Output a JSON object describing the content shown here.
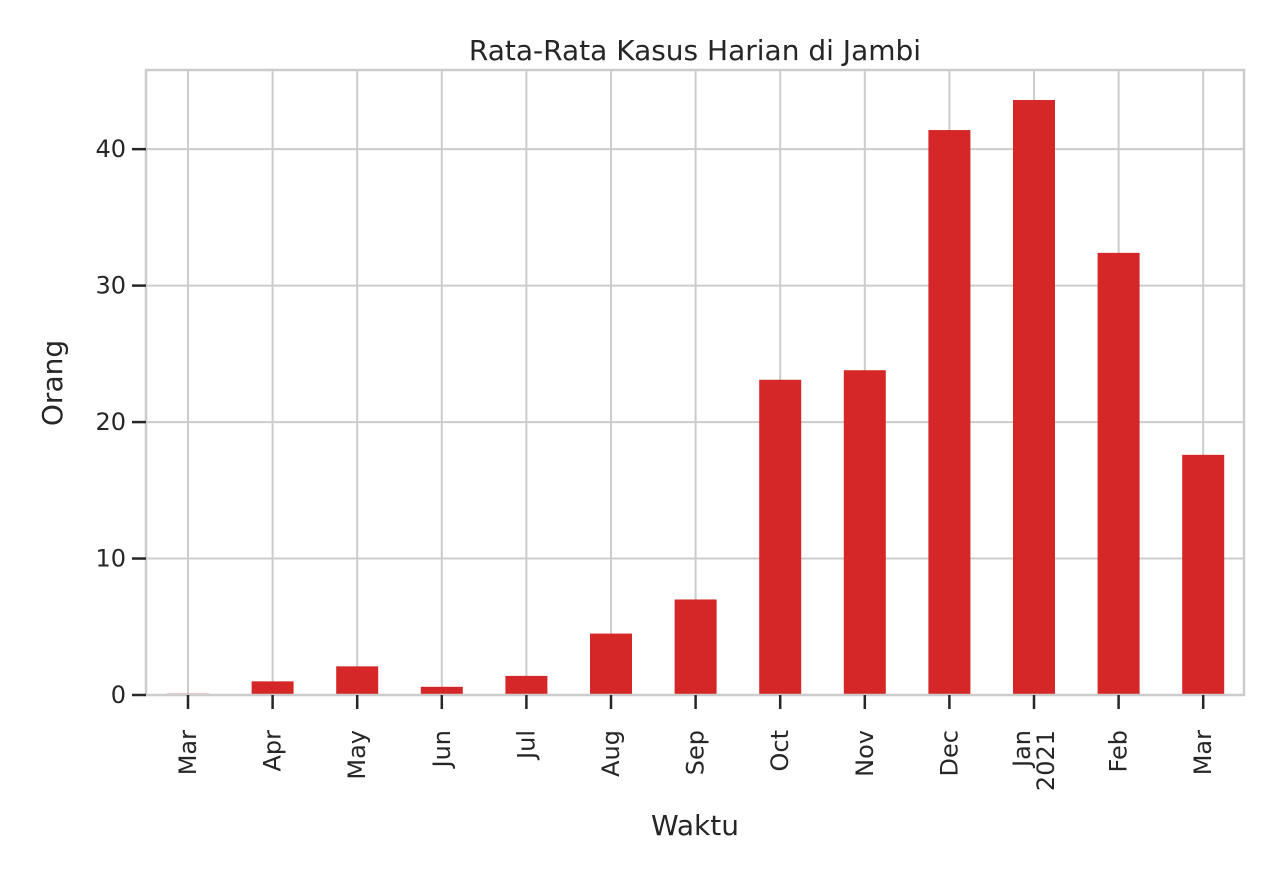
{
  "chart_data": {
    "type": "bar",
    "title": "Rata-Rata Kasus Harian di Jambi",
    "xlabel": "Waktu",
    "ylabel": "Orang",
    "categories": [
      "Mar",
      "Apr",
      "May",
      "Jun",
      "Jul",
      "Aug",
      "Sep",
      "Oct",
      "Nov",
      "Dec",
      "Jan\n2021",
      "Feb",
      "Mar"
    ],
    "values": [
      0.1,
      1.0,
      2.1,
      0.6,
      1.4,
      4.5,
      7.0,
      23.1,
      23.8,
      41.4,
      43.6,
      32.4,
      17.6
    ],
    "ylim": [
      0,
      45.8
    ],
    "yticks": [
      0,
      10,
      20,
      30,
      40
    ],
    "grid": true,
    "bar_color": "#d62728",
    "grid_color": "#cccccc"
  }
}
